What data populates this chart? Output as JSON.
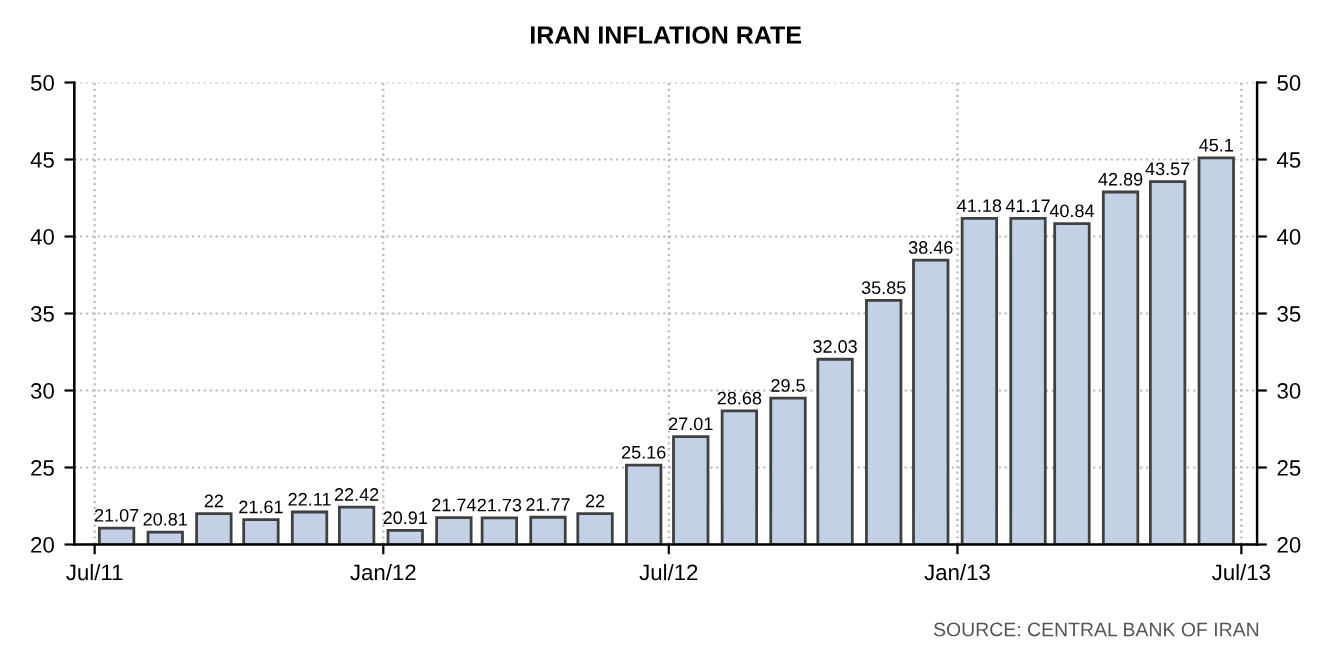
{
  "chart_data": {
    "type": "bar",
    "title": "IRAN INFLATION RATE",
    "x": [
      "2011-07-15",
      "2011-08-15",
      "2011-09-15",
      "2011-10-15",
      "2011-11-15",
      "2011-12-15",
      "2012-01-15",
      "2012-02-15",
      "2012-03-15",
      "2012-04-15",
      "2012-05-15",
      "2012-06-15",
      "2012-07-15",
      "2012-08-15",
      "2012-09-15",
      "2012-10-15",
      "2012-11-15",
      "2012-12-15",
      "2013-01-15",
      "2013-02-15",
      "2013-03-15",
      "2013-04-15",
      "2013-05-15",
      "2013-06-15"
    ],
    "values": [
      21.07,
      20.81,
      22,
      21.61,
      22.11,
      22.42,
      20.91,
      21.74,
      21.73,
      21.77,
      22,
      25.16,
      27.01,
      28.68,
      29.5,
      32.03,
      35.85,
      38.46,
      41.18,
      41.17,
      40.84,
      42.89,
      43.57,
      45.1
    ],
    "color": "#c3d1e6",
    "data_labels": true,
    "xlim": [
      "2011-06-18",
      "2013-07-11"
    ],
    "xticks": [
      {
        "value": "2011-07-01",
        "label": "Jul/11"
      },
      {
        "value": "2012-01-01",
        "label": "Jan/12"
      },
      {
        "value": "2012-07-01",
        "label": "Jul/12"
      },
      {
        "value": "2013-01-01",
        "label": "Jan/13"
      },
      {
        "value": "2013-07-01",
        "label": "Jul/13"
      }
    ],
    "ylim": [
      20,
      50
    ],
    "yticks": [
      20,
      25,
      30,
      35,
      40,
      45,
      50
    ],
    "y2lim": [
      20,
      50
    ],
    "y2ticks": [
      20,
      25,
      30,
      35,
      40,
      45,
      50
    ],
    "grid": true,
    "legend": false,
    "annotations": [
      "SOURCE: CENTRAL BANK OF IRAN"
    ]
  }
}
